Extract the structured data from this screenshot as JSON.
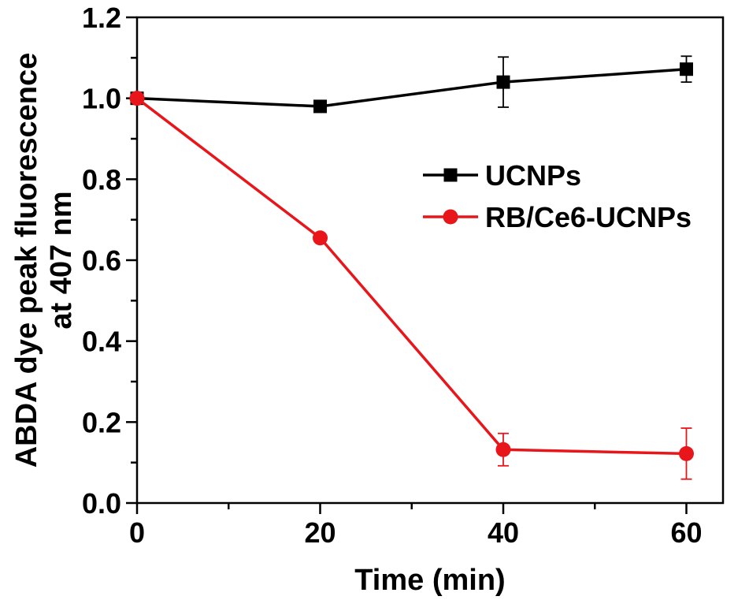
{
  "chart_data": {
    "type": "line",
    "title": "",
    "xlabel": "Time (min)",
    "ylabel_lines": [
      "ABDA dye peak fluorescence",
      "at 407 nm"
    ],
    "xlim": [
      0,
      64
    ],
    "ylim": [
      0,
      1.2
    ],
    "x_ticks": [
      0,
      20,
      40,
      60
    ],
    "x_tick_labels": [
      "0",
      "20",
      "40",
      "60"
    ],
    "y_ticks": [
      0,
      0.2,
      0.4,
      0.6,
      0.8,
      1.0,
      1.2
    ],
    "y_tick_labels": [
      "0.0",
      "0.2",
      "0.4",
      "0.6",
      "0.8",
      "1.0",
      "1.2"
    ],
    "grid": false,
    "legend_position": "center-right",
    "series": [
      {
        "name": "UCNPs",
        "color": "#000000",
        "marker": "square",
        "x": [
          0,
          20,
          40,
          60
        ],
        "y": [
          1.0,
          0.98,
          1.04,
          1.072
        ],
        "error": [
          0,
          0.008,
          0.062,
          0.032
        ]
      },
      {
        "name": "RB/Ce6-UCNPs",
        "color": "#e8161b",
        "marker": "circle",
        "x": [
          0,
          20,
          40,
          60
        ],
        "y": [
          1.0,
          0.655,
          0.132,
          0.122
        ],
        "error": [
          0,
          0.008,
          0.04,
          0.063
        ]
      }
    ]
  }
}
